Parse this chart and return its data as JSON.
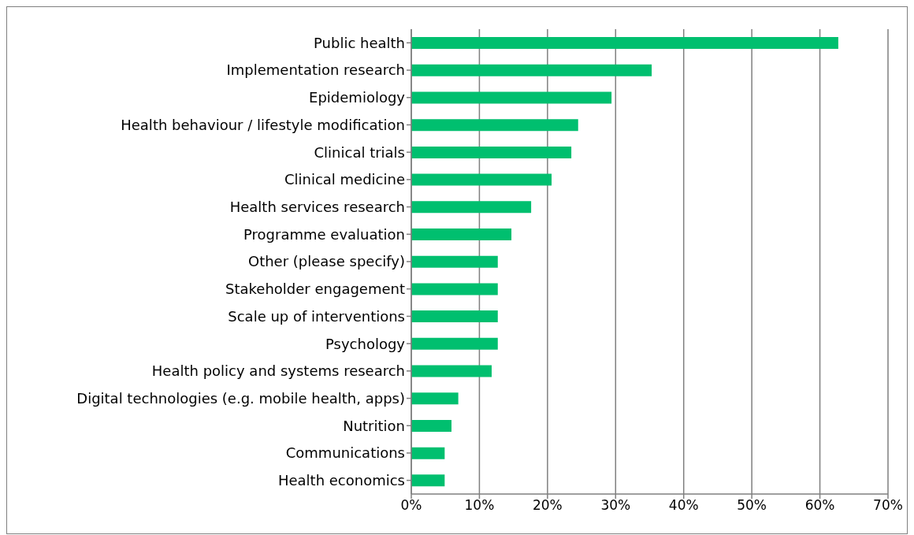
{
  "chart_data": {
    "type": "bar",
    "orientation": "horizontal",
    "categories": [
      "Public health",
      "Implementation research",
      "Epidemiology",
      "Health behaviour / lifestyle modification",
      "Clinical trials",
      "Clinical medicine",
      "Health services research",
      "Programme evaluation",
      "Other (please specify)",
      "Stakeholder engagement",
      "Scale up of interventions",
      "Psychology",
      "Health policy and systems research",
      "Digital technologies (e.g. mobile health, apps)",
      "Nutrition",
      "Communications",
      "Health economics"
    ],
    "values": [
      62.7,
      35.3,
      29.4,
      24.5,
      23.5,
      20.6,
      17.6,
      14.7,
      12.7,
      12.7,
      12.7,
      12.7,
      11.8,
      6.9,
      5.9,
      4.9,
      4.9
    ],
    "color": "#00bf6f",
    "xlim": [
      0,
      70
    ],
    "xticks": [
      {
        "value": 0,
        "label": "0%"
      },
      {
        "value": 10,
        "label": "10%"
      },
      {
        "value": 20,
        "label": "20%"
      },
      {
        "value": 30,
        "label": "30%"
      },
      {
        "value": 40,
        "label": "40%"
      },
      {
        "value": 50,
        "label": "50%"
      },
      {
        "value": 60,
        "label": "60%"
      },
      {
        "value": 70,
        "label": "70%"
      }
    ],
    "grid": "x",
    "legend": false
  }
}
